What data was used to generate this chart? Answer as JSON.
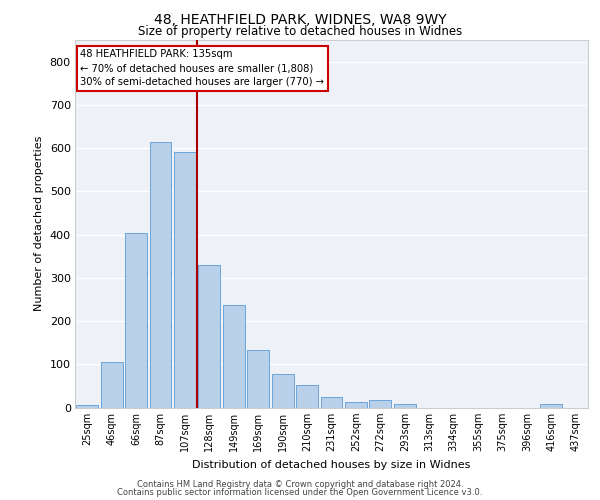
{
  "title_line1": "48, HEATHFIELD PARK, WIDNES, WA8 9WY",
  "title_line2": "Size of property relative to detached houses in Widnes",
  "xlabel": "Distribution of detached houses by size in Widnes",
  "ylabel": "Number of detached properties",
  "categories": [
    "25sqm",
    "46sqm",
    "66sqm",
    "87sqm",
    "107sqm",
    "128sqm",
    "149sqm",
    "169sqm",
    "190sqm",
    "210sqm",
    "231sqm",
    "252sqm",
    "272sqm",
    "293sqm",
    "313sqm",
    "334sqm",
    "355sqm",
    "375sqm",
    "396sqm",
    "416sqm",
    "437sqm"
  ],
  "values": [
    6,
    106,
    404,
    614,
    591,
    330,
    237,
    133,
    78,
    53,
    24,
    13,
    17,
    8,
    0,
    0,
    0,
    0,
    0,
    8,
    0
  ],
  "bar_color": "#b8d0e8",
  "bar_edge_color": "#5b9bd5",
  "annotation_line1": "48 HEATHFIELD PARK: 135sqm",
  "annotation_line2": "← 70% of detached houses are smaller (1,808)",
  "annotation_line3": "30% of semi-detached houses are larger (770) →",
  "vline_color": "#aa0000",
  "annotation_box_edge_color": "#cc0000",
  "background_color": "#eef2f8",
  "ylim": [
    0,
    850
  ],
  "yticks": [
    0,
    100,
    200,
    300,
    400,
    500,
    600,
    700,
    800
  ],
  "vline_x": 4.5,
  "footer_line1": "Contains HM Land Registry data © Crown copyright and database right 2024.",
  "footer_line2": "Contains public sector information licensed under the Open Government Licence v3.0."
}
